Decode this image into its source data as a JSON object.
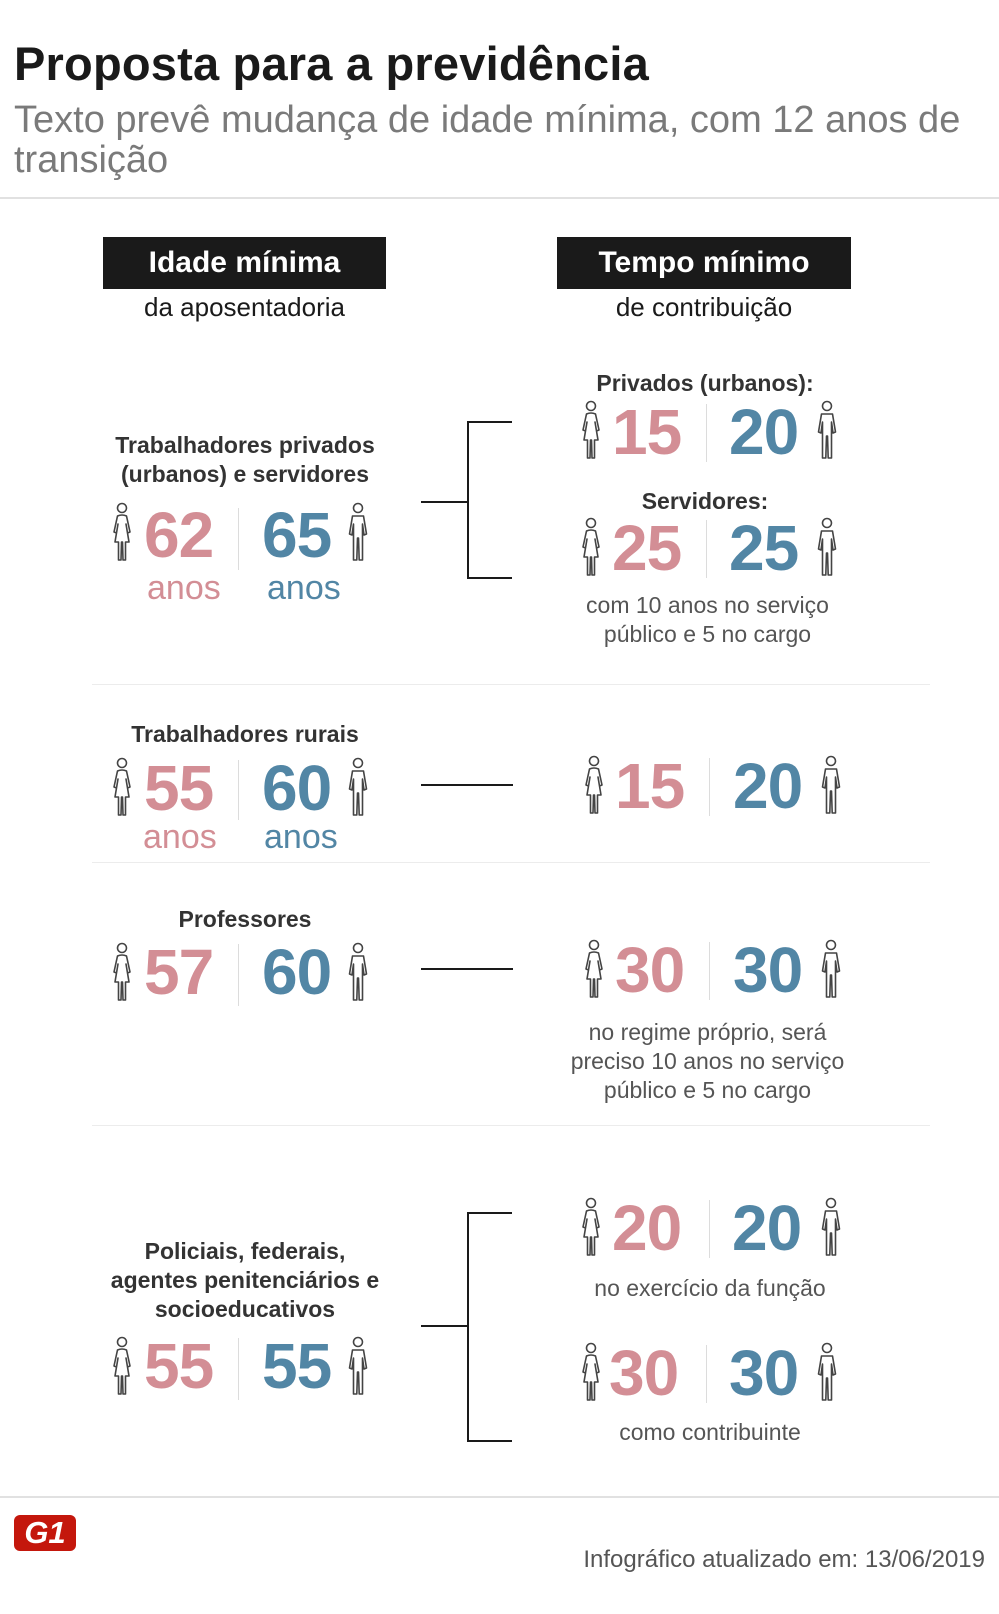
{
  "header": {
    "title": "Proposta para a previdência",
    "subtitle": "Texto prevê mudança de idade mínima, com 12 anos de transição"
  },
  "columns": {
    "left_head": "Idade mínima",
    "left_sub": "da aposentadoria",
    "right_head": "Tempo mínimo",
    "right_sub": "de contribuição"
  },
  "colors": {
    "female": "#d38e95",
    "male": "#5286a5"
  },
  "icons": {
    "female": "woman-icon",
    "male": "man-icon"
  },
  "rows": {
    "urbanos": {
      "label": "Trabalhadores privados (urbanos) e servidores",
      "age_f": "62",
      "age_m": "65",
      "unit_f": "anos",
      "unit_m": "anos",
      "privados_label": "Privados (urbanos):",
      "privados_f": "15",
      "privados_m": "20",
      "servidores_label": "Servidores:",
      "servidores_f": "25",
      "servidores_m": "25",
      "note": "com 10 anos no serviço público e 5 no cargo"
    },
    "rurais": {
      "label": "Trabalhadores rurais",
      "age_f": "55",
      "age_m": "60",
      "unit_f": "anos",
      "unit_m": "anos",
      "contrib_f": "15",
      "contrib_m": "20"
    },
    "professores": {
      "label": "Professores",
      "age_f": "57",
      "age_m": "60",
      "contrib_f": "30",
      "contrib_m": "30",
      "note": "no regime próprio, será preciso 10 anos no serviço público e 5 no cargo"
    },
    "policiais": {
      "label": "Policiais, federais, agentes penitenciários e socioeducativos",
      "age_f": "55",
      "age_m": "55",
      "funcao_f": "20",
      "funcao_m": "20",
      "funcao_note": "no exercício da função",
      "contribuinte_f": "30",
      "contribuinte_m": "30",
      "contribuinte_note": "como contribuinte"
    }
  },
  "footer": {
    "logo": "G1",
    "updated": "Infográfico atualizado em: 13/06/2019"
  }
}
